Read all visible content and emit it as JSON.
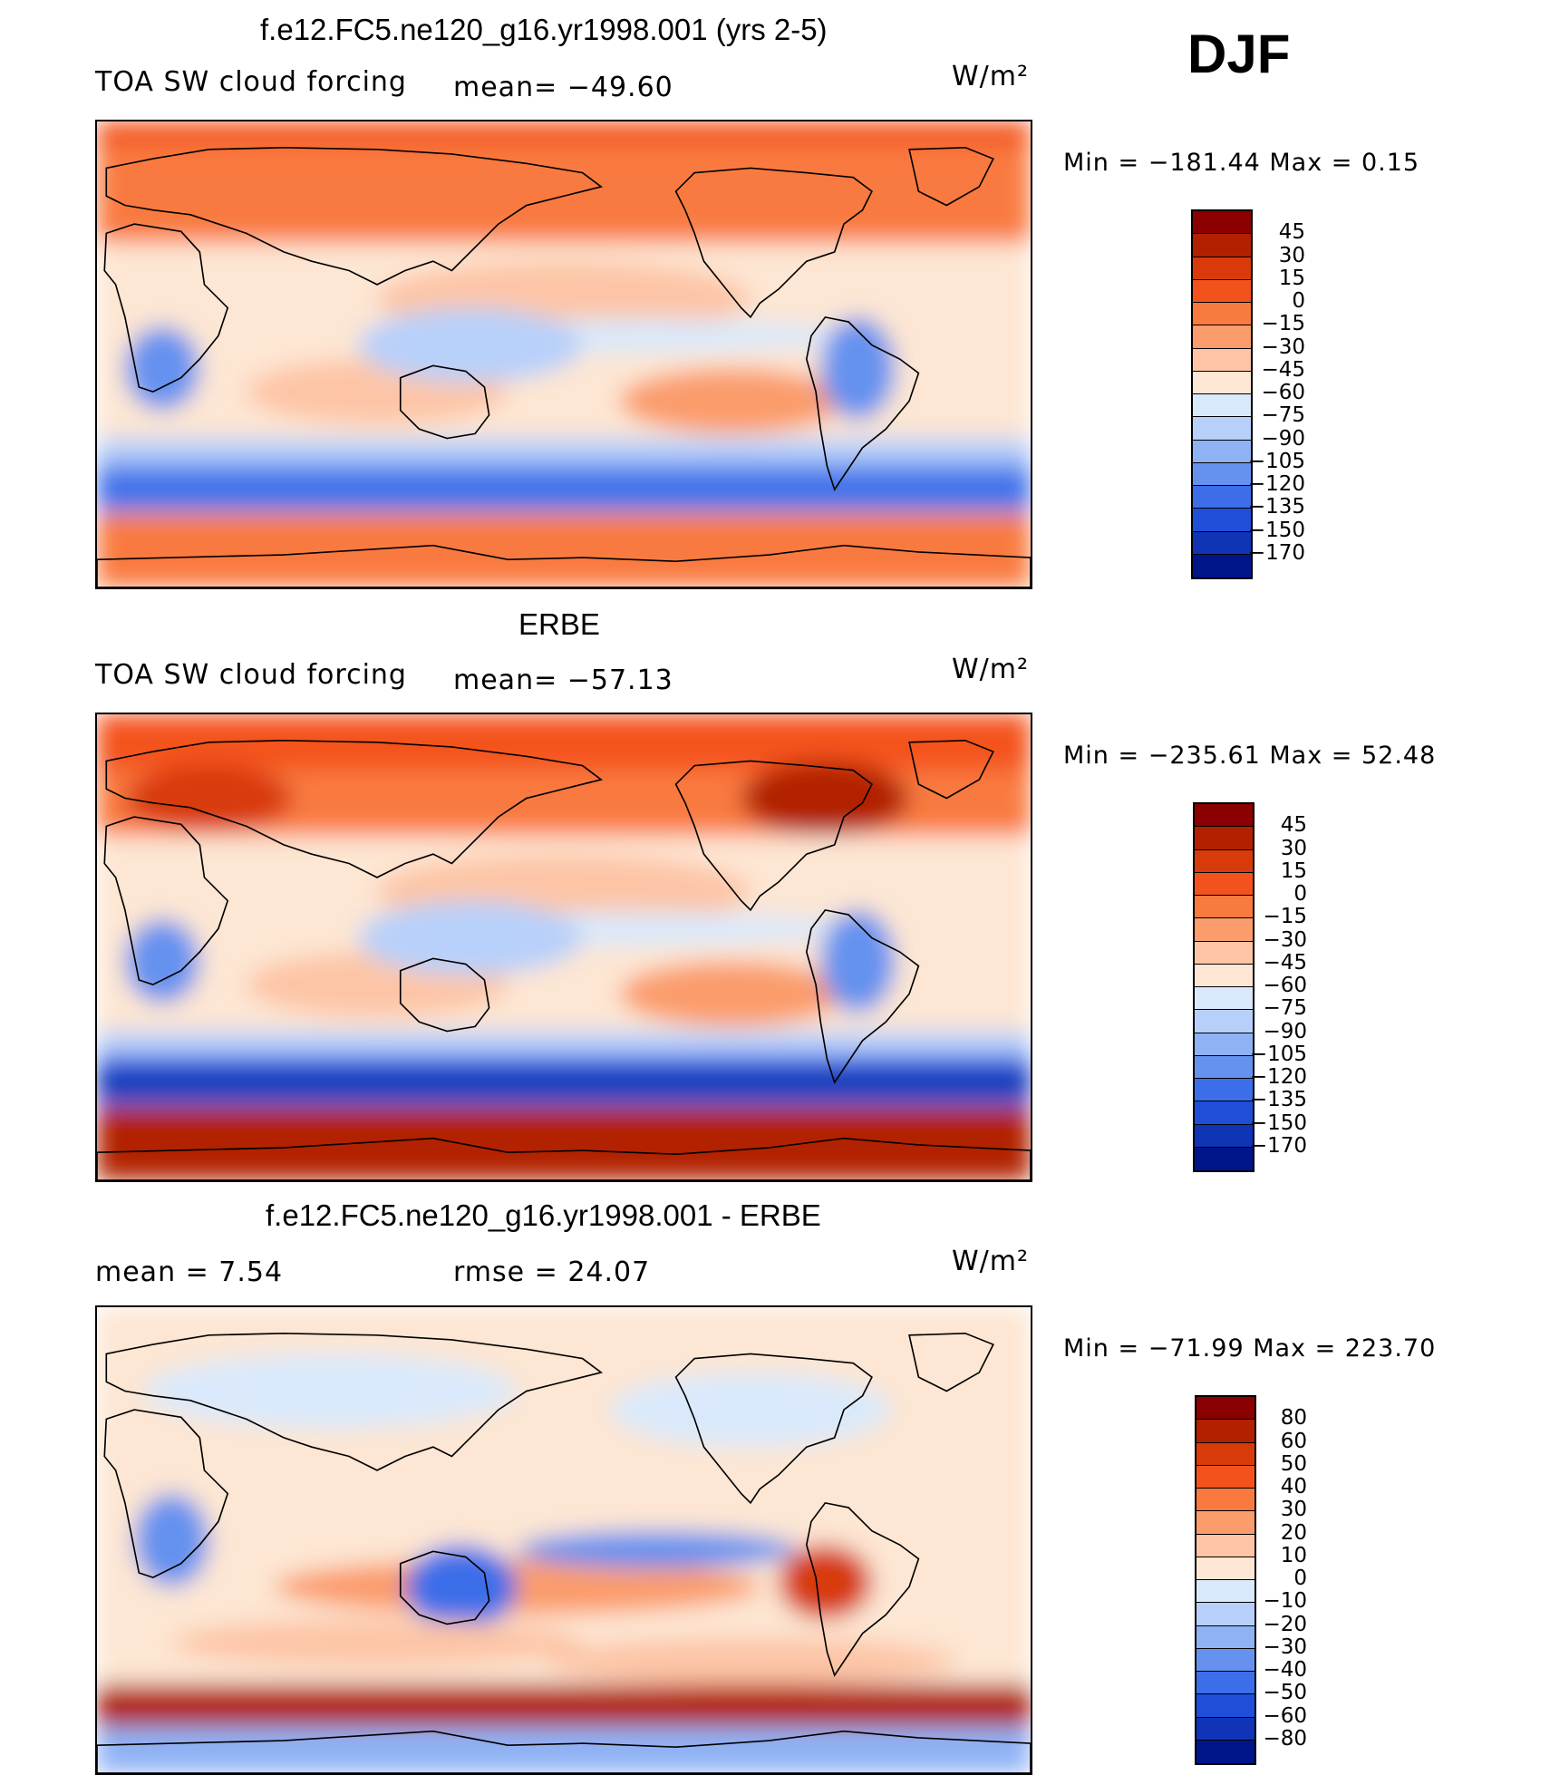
{
  "season": "DJF",
  "panels": [
    {
      "title": "f.e12.FC5.ne120_g16.yr1998.001 (yrs 2-5)",
      "left_label": "TOA SW cloud forcing",
      "mid_label": "mean= −49.60",
      "units": "W/m²",
      "stats": "Min  =  −181.44  Max  =     0.15",
      "colorbar": {
        "labels": [
          "45",
          "30",
          "15",
          "0",
          "−15",
          "−30",
          "−45",
          "−60",
          "−75",
          "−90",
          "−105",
          "−120",
          "−135",
          "−150",
          "−170"
        ],
        "colors": [
          "#8b0000",
          "#b22000",
          "#d83a0a",
          "#f4521c",
          "#f97a3f",
          "#fb9c6c",
          "#fdc5a6",
          "#fde6d3",
          "#d9e9fb",
          "#b7d0fa",
          "#8fb2f5",
          "#6592ef",
          "#3c6ee9",
          "#1f4fd9",
          "#0f34b6",
          "#00158a"
        ]
      },
      "style": "model"
    },
    {
      "title": "ERBE",
      "left_label": "TOA SW cloud forcing",
      "mid_label": "mean= −57.13",
      "units": "W/m²",
      "stats": "Min  =  −235.61  Max  =    52.48",
      "colorbar": {
        "labels": [
          "45",
          "30",
          "15",
          "0",
          "−15",
          "−30",
          "−45",
          "−60",
          "−75",
          "−90",
          "−105",
          "−120",
          "−135",
          "−150",
          "−170"
        ],
        "colors": [
          "#8b0000",
          "#b22000",
          "#d83a0a",
          "#f4521c",
          "#f97a3f",
          "#fb9c6c",
          "#fdc5a6",
          "#fde6d3",
          "#d9e9fb",
          "#b7d0fa",
          "#8fb2f5",
          "#6592ef",
          "#3c6ee9",
          "#1f4fd9",
          "#0f34b6",
          "#00158a"
        ]
      },
      "style": "obs"
    },
    {
      "title": "f.e12.FC5.ne120_g16.yr1998.001 - ERBE",
      "left_label": "mean  =     7.54",
      "mid_label": "rmse  =    24.07",
      "units": "W/m²",
      "stats": "Min  =  −71.99  Max  =  223.70",
      "colorbar": {
        "labels": [
          "80",
          "60",
          "50",
          "40",
          "30",
          "20",
          "10",
          "0",
          "−10",
          "−20",
          "−30",
          "−40",
          "−50",
          "−60",
          "−80"
        ],
        "colors": [
          "#8b0000",
          "#b22000",
          "#d83a0a",
          "#f4521c",
          "#f97a3f",
          "#fb9c6c",
          "#fdc5a6",
          "#fde6d3",
          "#d9e9fb",
          "#b7d0fa",
          "#8fb2f5",
          "#6592ef",
          "#3c6ee9",
          "#1f4fd9",
          "#0f34b6",
          "#00158a"
        ]
      },
      "style": "diff"
    }
  ]
}
